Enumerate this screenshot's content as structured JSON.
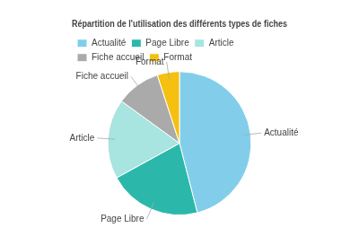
{
  "chart_data": {
    "type": "pie",
    "title": "Répartition de l'utilisation des différents types de fiches",
    "categories": [
      "Actualité",
      "Page Libre",
      "Article",
      "Fiche accueil",
      "Format"
    ],
    "values": [
      46,
      21,
      18,
      10,
      5
    ],
    "colors": [
      "#82CEEA",
      "#2BB8AA",
      "#A8E4E0",
      "#AAAAAA",
      "#F5C010"
    ],
    "legend": "top"
  }
}
